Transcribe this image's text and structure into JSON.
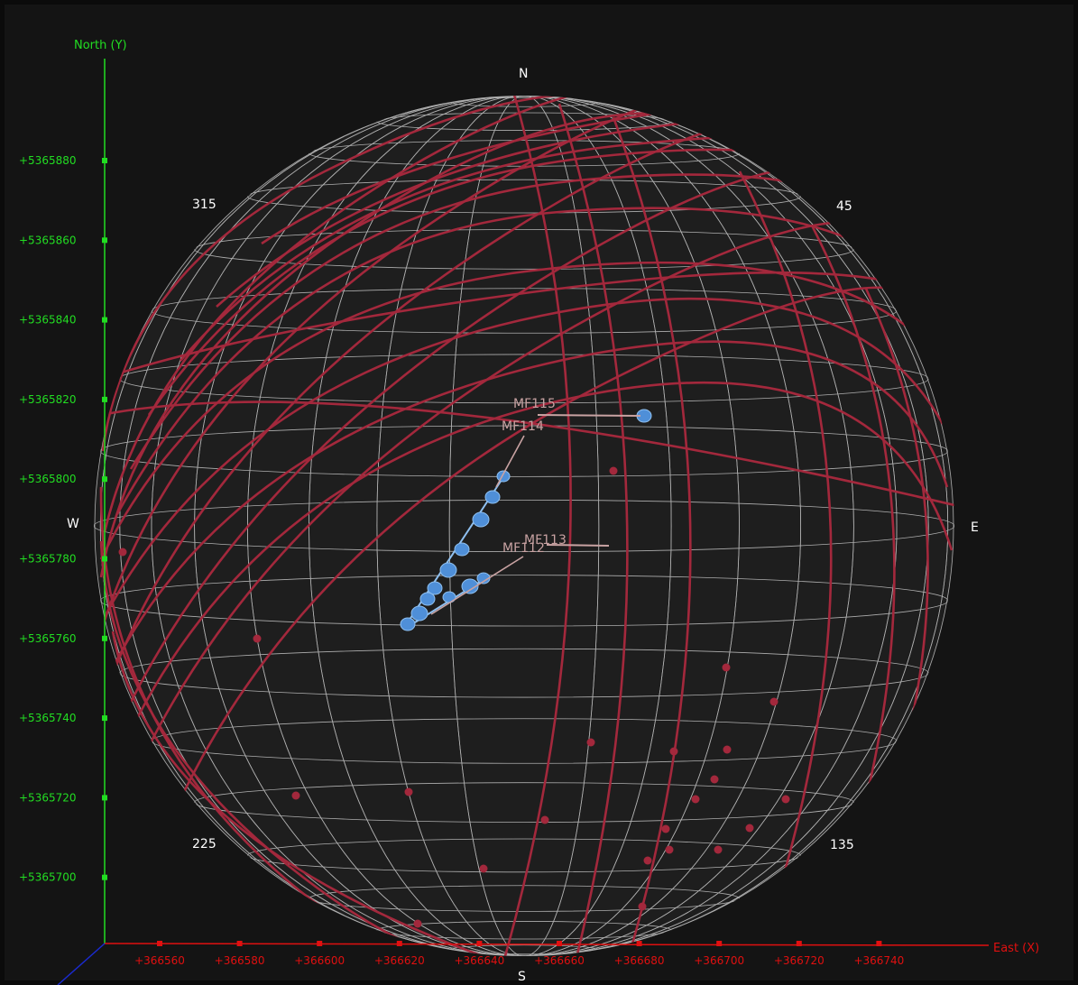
{
  "compass": {
    "n": "N",
    "s": "S",
    "e": "E",
    "w": "W",
    "ne": "45",
    "se": "135",
    "sw": "225",
    "nw": "315"
  },
  "axes": {
    "y_title": "North (Y)",
    "x_title": "East (X)",
    "y_ticks": [
      "+5365880",
      "+5365860",
      "+5365840",
      "+5365820",
      "+5365800",
      "+5365780",
      "+5365760",
      "+5365740",
      "+5365720",
      "+5365700"
    ],
    "x_ticks": [
      "+366560",
      "+366580",
      "+366600",
      "+366620",
      "+366640",
      "+366660",
      "+366680",
      "+366700",
      "+366720",
      "+366740"
    ]
  },
  "labels": {
    "mf115": "MF115",
    "mf114": "MF114",
    "mf113": "MF113",
    "mf112": "MF112"
  },
  "colors": {
    "y_axis": "#22dd22",
    "x_axis": "#e01010",
    "great_circle": "#a3283c",
    "pole": "#a3283c",
    "cluster": "#4f8fd8",
    "leader": "#c9a3a3",
    "grid": "#c8c8c8"
  }
}
